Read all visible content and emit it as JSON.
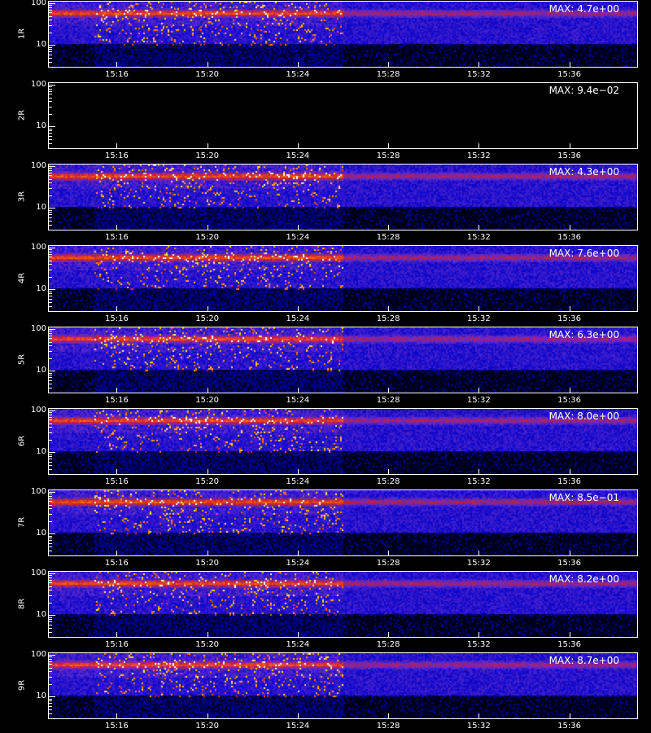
{
  "chart_data": {
    "type": "heatmap",
    "colormap": [
      "#000000",
      "#0000c8",
      "#5a2ad0",
      "#c81e3c",
      "#ff6a00",
      "#ffd200",
      "#ffffff"
    ],
    "y_scale": "log",
    "ylim": [
      3,
      110
    ],
    "y_ticks": [
      "100",
      "10"
    ],
    "x_ticks": [
      "15:16",
      "15:20",
      "15:24",
      "15:28",
      "15:32",
      "15:36"
    ],
    "xlim": [
      "15:13",
      "15:39"
    ],
    "panels": [
      {
        "ylabel": "1R",
        "max_label": "MAX: 4.7e+00",
        "empty": false
      },
      {
        "ylabel": "2R",
        "max_label": "MAX: 9.4e−02",
        "empty": true
      },
      {
        "ylabel": "3R",
        "max_label": "MAX: 4.3e+00",
        "empty": false
      },
      {
        "ylabel": "4R",
        "max_label": "MAX: 7.6e+00",
        "empty": false
      },
      {
        "ylabel": "5R",
        "max_label": "MAX: 6.3e+00",
        "empty": false
      },
      {
        "ylabel": "6R",
        "max_label": "MAX: 8.0e+00",
        "empty": false
      },
      {
        "ylabel": "7R",
        "max_label": "MAX: 8.5e−01",
        "empty": false
      },
      {
        "ylabel": "8R",
        "max_label": "MAX: 8.2e+00",
        "empty": false
      },
      {
        "ylabel": "9R",
        "max_label": "MAX: 8.7e+00",
        "empty": false
      }
    ]
  },
  "footer_text": ""
}
